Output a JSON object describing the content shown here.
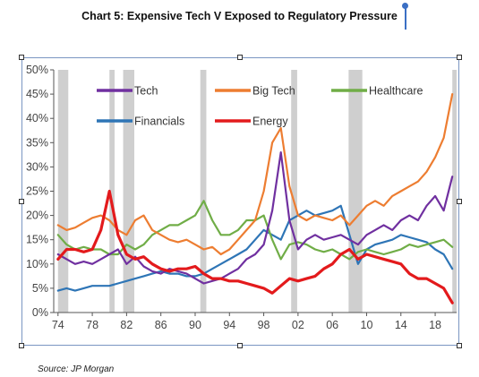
{
  "chart_data": {
    "type": "line",
    "title": "Chart 5: Expensive Tech V Exposed to Regulatory Pressure",
    "source": "Source: JP Morgan",
    "xlabel": "",
    "ylabel": "",
    "xlim": [
      1973.5,
      2020.5
    ],
    "ylim": [
      0,
      50
    ],
    "x_ticks": [
      74,
      78,
      82,
      86,
      90,
      94,
      98,
      2,
      6,
      10,
      14,
      18
    ],
    "x_tick_labels": [
      "74",
      "78",
      "82",
      "86",
      "90",
      "94",
      "98",
      "02",
      "06",
      "10",
      "14",
      "18"
    ],
    "y_ticks": [
      0,
      5,
      10,
      15,
      20,
      25,
      30,
      35,
      40,
      45,
      50
    ],
    "y_tick_labels": [
      "0%",
      "5%",
      "10%",
      "15%",
      "20%",
      "25%",
      "30%",
      "35%",
      "40%",
      "45%",
      "50%"
    ],
    "grid": false,
    "legend_position": "top",
    "recession_bands": [
      [
        1974.0,
        1975.2
      ],
      [
        1980.0,
        1980.6
      ],
      [
        1981.6,
        1982.9
      ],
      [
        1990.6,
        1991.3
      ],
      [
        2001.2,
        2001.9
      ],
      [
        2007.9,
        2009.5
      ],
      [
        2020.0,
        2020.5
      ]
    ],
    "series": [
      {
        "name": "Tech",
        "color": "#7030a0",
        "x": [
          1974,
          1975,
          1976,
          1977,
          1978,
          1979,
          1980,
          1981,
          1982,
          1983,
          1984,
          1985,
          1986,
          1987,
          1988,
          1989,
          1990,
          1991,
          1992,
          1993,
          1994,
          1995,
          1996,
          1997,
          1998,
          1999,
          2000,
          2001,
          2002,
          2003,
          2004,
          2005,
          2006,
          2007,
          2008,
          2009,
          2010,
          2011,
          2012,
          2013,
          2014,
          2015,
          2016,
          2017,
          2018,
          2019,
          2020
        ],
        "y": [
          12,
          11,
          10,
          10.5,
          10,
          11,
          12,
          13,
          10,
          11.5,
          9.5,
          8.5,
          8,
          9,
          8.5,
          8,
          7,
          6,
          6.5,
          7,
          8,
          9,
          11,
          12,
          14,
          21,
          33,
          19,
          13,
          15,
          16,
          15,
          15.5,
          16,
          15,
          14,
          16,
          17,
          18,
          17,
          19,
          20,
          19,
          22,
          24,
          21,
          28
        ]
      },
      {
        "name": "Big Tech",
        "color": "#ed7d31",
        "x": [
          1974,
          1975,
          1976,
          1977,
          1978,
          1979,
          1980,
          1981,
          1982,
          1983,
          1984,
          1985,
          1986,
          1987,
          1988,
          1989,
          1990,
          1991,
          1992,
          1993,
          1994,
          1995,
          1996,
          1997,
          1998,
          1999,
          2000,
          2001,
          2002,
          2003,
          2004,
          2005,
          2006,
          2007,
          2008,
          2009,
          2010,
          2011,
          2012,
          2013,
          2014,
          2015,
          2016,
          2017,
          2018,
          2019,
          2020
        ],
        "y": [
          18,
          17,
          17.5,
          18.5,
          19.5,
          20,
          19,
          17,
          16,
          19,
          20,
          17,
          16,
          15,
          14.5,
          15,
          14,
          13,
          13.5,
          12,
          13,
          15,
          17,
          19,
          25,
          35,
          38,
          26,
          20,
          19,
          20,
          19.5,
          19,
          20,
          18,
          20,
          22,
          23,
          22,
          24,
          25,
          26,
          27,
          29,
          32,
          36,
          45
        ]
      },
      {
        "name": "Healthcare",
        "color": "#70ad47",
        "x": [
          1974,
          1975,
          1976,
          1977,
          1978,
          1979,
          1980,
          1981,
          1982,
          1983,
          1984,
          1985,
          1986,
          1987,
          1988,
          1989,
          1990,
          1991,
          1992,
          1993,
          1994,
          1995,
          1996,
          1997,
          1998,
          1999,
          2000,
          2001,
          2002,
          2003,
          2004,
          2005,
          2006,
          2007,
          2008,
          2009,
          2010,
          2011,
          2012,
          2013,
          2014,
          2015,
          2016,
          2017,
          2018,
          2019,
          2020
        ],
        "y": [
          16,
          14,
          13,
          13.5,
          13,
          13,
          12,
          12,
          14,
          13,
          14,
          16,
          17,
          18,
          18,
          19,
          20,
          23,
          19,
          16,
          16,
          17,
          19,
          19,
          20,
          15,
          11,
          14,
          14.5,
          14,
          13,
          12.5,
          13,
          12,
          11,
          12.5,
          13,
          12.5,
          12,
          12.5,
          13,
          14,
          13.5,
          14,
          14.5,
          15,
          13.5
        ]
      },
      {
        "name": "Financials",
        "color": "#2e75b6",
        "x": [
          1974,
          1975,
          1976,
          1977,
          1978,
          1979,
          1980,
          1981,
          1982,
          1983,
          1984,
          1985,
          1986,
          1987,
          1988,
          1989,
          1990,
          1991,
          1992,
          1993,
          1994,
          1995,
          1996,
          1997,
          1998,
          1999,
          2000,
          2001,
          2002,
          2003,
          2004,
          2005,
          2006,
          2007,
          2008,
          2009,
          2010,
          2011,
          2012,
          2013,
          2014,
          2015,
          2016,
          2017,
          2018,
          2019,
          2020
        ],
        "y": [
          4.5,
          5,
          4.5,
          5,
          5.5,
          5.5,
          5.5,
          6,
          6.5,
          7,
          7.5,
          8,
          8.5,
          8,
          8,
          7.5,
          7.5,
          8,
          9,
          10,
          11,
          12,
          13,
          15,
          17,
          16,
          15,
          19,
          20,
          21,
          20,
          20.5,
          21,
          22,
          16,
          10,
          13,
          14,
          14.5,
          15,
          16,
          15.5,
          15,
          14.5,
          13,
          12,
          9
        ]
      },
      {
        "name": "Energy",
        "color": "#e31a1c",
        "x": [
          1974,
          1975,
          1976,
          1977,
          1978,
          1979,
          1980,
          1981,
          1982,
          1983,
          1984,
          1985,
          1986,
          1987,
          1988,
          1989,
          1990,
          1991,
          1992,
          1993,
          1994,
          1995,
          1996,
          1997,
          1998,
          1999,
          2000,
          2001,
          2002,
          2003,
          2004,
          2005,
          2006,
          2007,
          2008,
          2009,
          2010,
          2011,
          2012,
          2013,
          2014,
          2015,
          2016,
          2017,
          2018,
          2019,
          2020
        ],
        "y": [
          11,
          13,
          13,
          12.5,
          13,
          17,
          25,
          16,
          12,
          11,
          11.5,
          10,
          9,
          8.5,
          9,
          9,
          9.5,
          8,
          7,
          7,
          6.5,
          6.5,
          6,
          5.5,
          5,
          4,
          5.5,
          7,
          6.5,
          7,
          7.5,
          9,
          10,
          12,
          13,
          11,
          12,
          11.5,
          11,
          10.5,
          10,
          8,
          7,
          7,
          6,
          5,
          2
        ]
      }
    ]
  }
}
